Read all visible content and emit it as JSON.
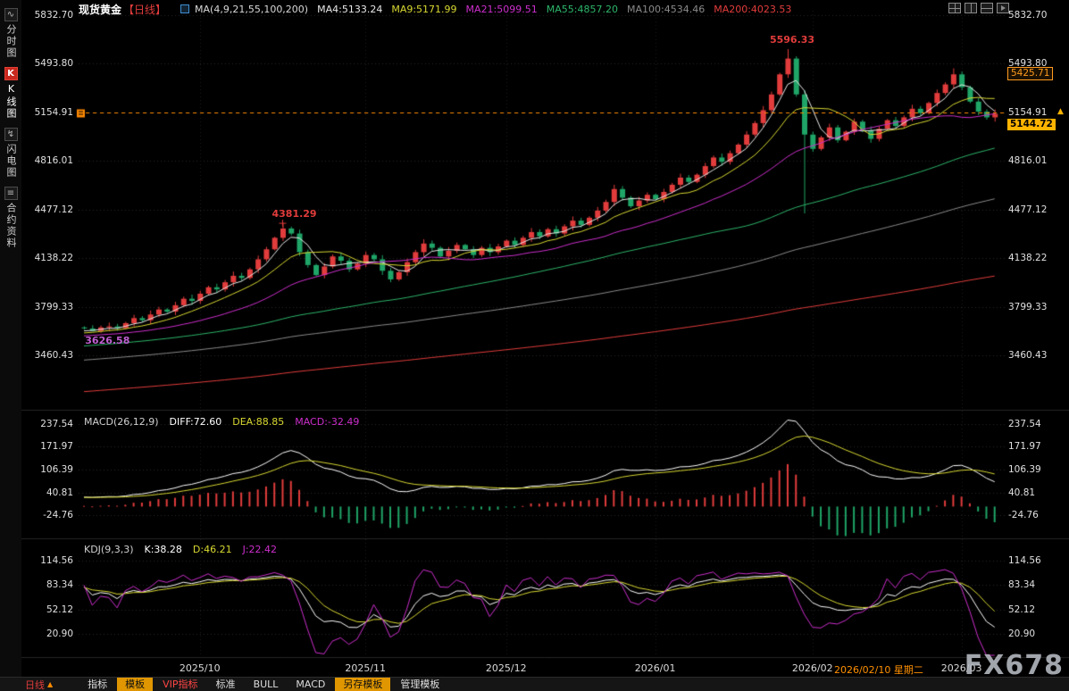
{
  "header": {
    "title": "现货黄金",
    "period_tag": "【日线】",
    "ma_prefix": "MA(4,9,21,55,100,200)",
    "ma_entries": [
      {
        "label": "MA4:5133.24",
        "color": "#e8e8e8"
      },
      {
        "label": "MA9:5171.99",
        "color": "#d8d832"
      },
      {
        "label": "MA21:5099.51",
        "color": "#cc2ecc"
      },
      {
        "label": "MA55:4857.20",
        "color": "#2db56a"
      },
      {
        "label": "MA100:4534.46",
        "color": "#8a8a8a"
      },
      {
        "label": "MA200:4023.53",
        "color": "#e23c3c"
      }
    ]
  },
  "sidebar": {
    "items": [
      {
        "name": "timeshare-chart",
        "label": "分时图",
        "icon": "∿",
        "active": false
      },
      {
        "name": "kline-chart",
        "label": "K线图",
        "icon": "K",
        "active": true
      },
      {
        "name": "lightning-chart",
        "label": "闪电图",
        "icon": "↯",
        "active": false
      },
      {
        "name": "contract-info",
        "label": "合约资料",
        "icon": "≡",
        "active": false
      }
    ]
  },
  "axes": {
    "price_labels": [
      "5832.70",
      "5493.80",
      "5154.91",
      "4816.01",
      "4477.12",
      "4138.22",
      "3799.33",
      "3460.43"
    ],
    "macd_labels": [
      "237.54",
      "171.97",
      "106.39",
      "40.81",
      "-24.76"
    ],
    "kdj_labels": [
      "114.56",
      "83.34",
      "52.12",
      "20.90"
    ],
    "dates": [
      {
        "label": "2025/10",
        "index": 14,
        "highlight": false
      },
      {
        "label": "2025/11",
        "index": 34,
        "highlight": false
      },
      {
        "label": "2025/12",
        "index": 51,
        "highlight": false
      },
      {
        "label": "2026/01",
        "index": 69,
        "highlight": false
      },
      {
        "label": "2026/02",
        "index": 88,
        "highlight": false
      },
      {
        "label": "2026/02/10 星期二",
        "index": 96,
        "highlight": true
      },
      {
        "label": "2026/03",
        "index": 106,
        "highlight": false
      }
    ]
  },
  "annotations": {
    "peak_high": "5596.33",
    "oct_high": "4381.29",
    "start_low": "3626.58"
  },
  "badges": {
    "upper": "5425.71",
    "current": "5144.72"
  },
  "price_arrow": "▲",
  "macd_header": [
    {
      "text": "MACD(26,12,9)",
      "color": "#d0d0d0"
    },
    {
      "text": "DIFF:72.60",
      "color": "#ffffff"
    },
    {
      "text": "DEA:88.85",
      "color": "#d8d832"
    },
    {
      "text": "MACD:-32.49",
      "color": "#cc2ecc"
    }
  ],
  "kdj_header": [
    {
      "text": "KDJ(9,3,3)",
      "color": "#d0d0d0"
    },
    {
      "text": "K:38.28",
      "color": "#ffffff"
    },
    {
      "text": "D:46.21",
      "color": "#d8d832"
    },
    {
      "text": "J:22.42",
      "color": "#cc2ecc"
    }
  ],
  "toolbar": {
    "period": "日线",
    "period_arrow": "▲",
    "tabs": [
      {
        "name": "indicators",
        "label": "指标",
        "style": "normal"
      },
      {
        "name": "templates",
        "label": "模板",
        "style": "active"
      },
      {
        "name": "vip-indicators",
        "label": "VIP指标",
        "style": "vip"
      },
      {
        "name": "standard",
        "label": "标准",
        "style": "normal"
      },
      {
        "name": "bull",
        "label": "BULL",
        "style": "normal"
      },
      {
        "name": "macd",
        "label": "MACD",
        "style": "normal"
      },
      {
        "name": "save-template",
        "label": "另存模板",
        "style": "active"
      },
      {
        "name": "manage-templates",
        "label": "管理模板",
        "style": "normal"
      }
    ]
  },
  "watermark": "FX678",
  "chart_data": {
    "type": "candlestick",
    "instrument": "现货黄金",
    "period": "日线",
    "price_axis": {
      "top": 5832.7,
      "bottom": 3460.43
    },
    "macd_axis": {
      "top": 237.54,
      "bottom": -24.76
    },
    "kdj_axis": {
      "top": 114.56,
      "bottom": 20.9
    },
    "first_open": 3655,
    "closes": [
      3648,
      3630,
      3655,
      3662,
      3650,
      3685,
      3720,
      3705,
      3745,
      3780,
      3765,
      3810,
      3855,
      3840,
      3890,
      3935,
      3920,
      3970,
      4015,
      4000,
      4060,
      4130,
      4200,
      4280,
      4345,
      4310,
      4180,
      4090,
      4020,
      4080,
      4150,
      4120,
      4060,
      4100,
      4160,
      4130,
      4050,
      3990,
      4040,
      4110,
      4180,
      4240,
      4210,
      4150,
      4190,
      4230,
      4200,
      4160,
      4210,
      4180,
      4220,
      4260,
      4230,
      4280,
      4320,
      4290,
      4340,
      4310,
      4360,
      4400,
      4370,
      4420,
      4470,
      4530,
      4620,
      4560,
      4500,
      4540,
      4580,
      4550,
      4600,
      4650,
      4700,
      4670,
      4720,
      4780,
      4840,
      4810,
      4870,
      4930,
      5000,
      5080,
      5170,
      5280,
      5420,
      5530,
      5280,
      5000,
      4900,
      4980,
      5050,
      4960,
      5020,
      5090,
      5030,
      4970,
      5040,
      5100,
      5060,
      5120,
      5180,
      5150,
      5220,
      5290,
      5350,
      5420,
      5330,
      5230,
      5160,
      5120,
      5144.72
    ],
    "key_points": [
      {
        "index": 1,
        "low": 3626.58
      },
      {
        "index": 24,
        "high": 4381.29
      },
      {
        "index": 85,
        "high": 5596.33
      },
      {
        "index": 87,
        "low": 4450
      },
      {
        "index": 105,
        "high": 5462
      }
    ],
    "current_close": 5144.72,
    "price_line_value": 5154.91,
    "ma_periods": [
      4,
      9,
      21,
      55,
      100,
      200
    ],
    "ma_colors": [
      "#e8e8e8",
      "#d8d832",
      "#cc2ecc",
      "#2db56a",
      "#8a8a8a",
      "#e23c3c"
    ],
    "ma_current_values": [
      5133.24,
      5171.99,
      5099.51,
      4857.2,
      4534.46,
      4023.53
    ],
    "macd": {
      "params": [
        26,
        12,
        9
      ],
      "diff": 72.6,
      "dea": 88.85,
      "macd": -32.49
    },
    "kdj": {
      "params": [
        9,
        3,
        3
      ],
      "k": 38.28,
      "d": 46.21,
      "j": 22.42
    },
    "colors": {
      "up": "#e23c3c",
      "down": "#1fa567",
      "price_line": "#ff8a00",
      "diff_line": "#ffffff",
      "dea_line": "#d8d832",
      "k_line": "#ffffff",
      "d_line": "#d8d832",
      "j_line": "#cc2ecc",
      "grid": "#262626"
    }
  }
}
